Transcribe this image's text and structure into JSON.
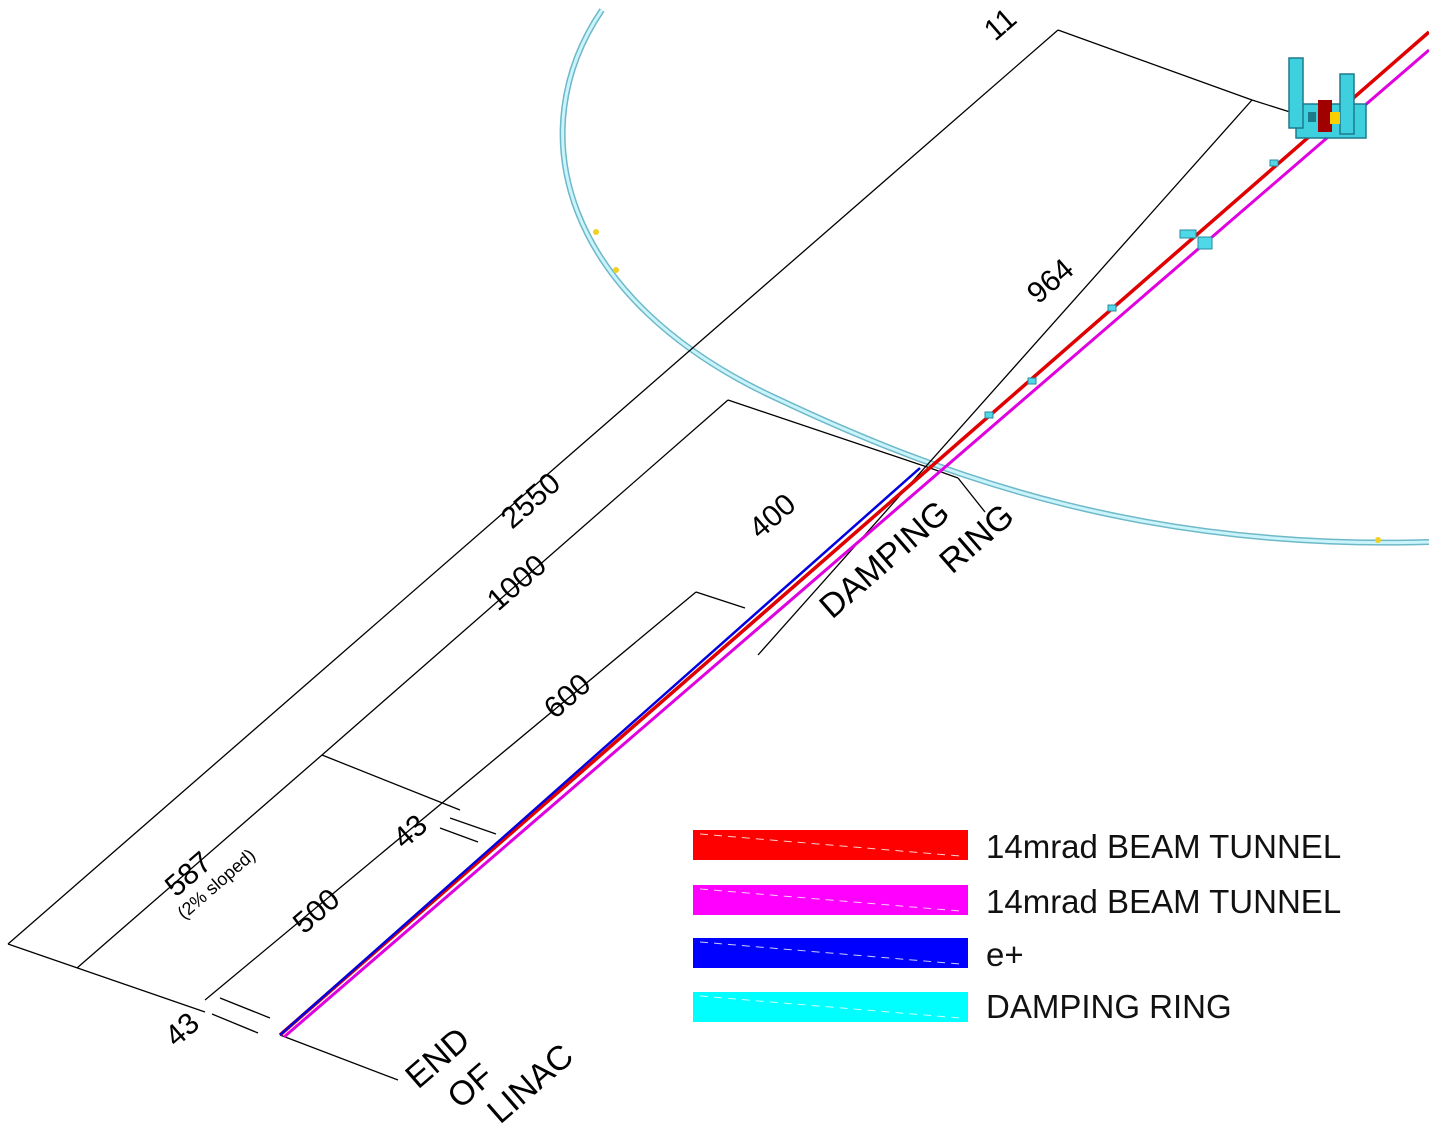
{
  "dimensions": {
    "d_11": "11",
    "d_964": "964",
    "d_2550": "2550",
    "d_1000": "1000",
    "d_400": "400",
    "d_600": "600",
    "d_587": "587",
    "d_587_note": "(2% sloped)",
    "d_43_a": "43",
    "d_500": "500",
    "d_43_b": "43"
  },
  "labels": {
    "damping_ring_1": "DAMPING",
    "damping_ring_2": "RING",
    "end_of_linac_1": "END",
    "end_of_linac_2": "OF",
    "end_of_linac_3": "LINAC"
  },
  "legend": [
    {
      "label": "14mrad BEAM TUNNEL",
      "color": "#ff0000"
    },
    {
      "label": "14mrad BEAM TUNNEL",
      "color": "#ff00ff"
    },
    {
      "label": "e+",
      "color": "#0000ff"
    },
    {
      "label": "DAMPING RING",
      "color": "#00ffff"
    }
  ]
}
